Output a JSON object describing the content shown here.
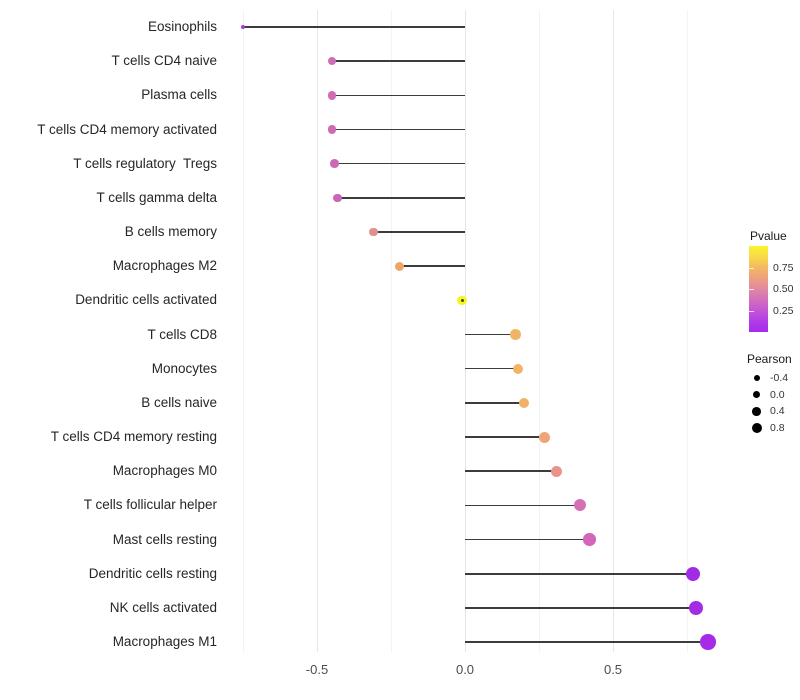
{
  "chart_data": {
    "type": "scatter",
    "variant": "lollipop",
    "title": "",
    "xlabel": "",
    "ylabel": "",
    "grid": true,
    "x_axis": {
      "range": [
        -0.83,
        0.92
      ],
      "ticks": [
        {
          "value": -0.5,
          "label": "-0.5"
        },
        {
          "value": 0.0,
          "label": "0.0"
        },
        {
          "value": 0.5,
          "label": "0.5"
        }
      ],
      "minor_ticks": [
        -0.75,
        -0.25,
        0.25,
        0.75
      ]
    },
    "style": {
      "segment_color": "#3c3c3c",
      "gridline_major_color": "#e6e6e6",
      "gridline_minor_color": "#f3f3f3",
      "background": "#ffffff"
    },
    "points": [
      {
        "label": "Eosinophils",
        "pearson": -0.75,
        "pvalue": 0.12,
        "color": "#AA3BD2",
        "radius_px": 2.2
      },
      {
        "label": "T cells CD4 naive",
        "pearson": -0.45,
        "pvalue": 0.33,
        "color": "#CE6DB5",
        "radius_px": 4.2
      },
      {
        "label": "Plasma cells",
        "pearson": -0.45,
        "pvalue": 0.33,
        "color": "#CE6DB5",
        "radius_px": 4.2
      },
      {
        "label": "T cells CD4 memory activated",
        "pearson": -0.45,
        "pvalue": 0.33,
        "color": "#CD6CB5",
        "radius_px": 4.2
      },
      {
        "label": "T cells regulatory  Tregs",
        "pearson": -0.44,
        "pvalue": 0.34,
        "color": "#CC69B6",
        "radius_px": 4.3
      },
      {
        "label": "T cells gamma delta",
        "pearson": -0.43,
        "pvalue": 0.34,
        "color": "#CB66B7",
        "radius_px": 4.3
      },
      {
        "label": "B cells memory",
        "pearson": -0.31,
        "pvalue": 0.5,
        "color": "#DF908B",
        "radius_px": 4.4
      },
      {
        "label": "Macrophages M2",
        "pearson": -0.22,
        "pvalue": 0.63,
        "color": "#EAA766",
        "radius_px": 4.6
      },
      {
        "label": "Dendritic cells activated",
        "pearson": -0.01,
        "pvalue": 0.97,
        "color": "#F8F620",
        "radius_px": 4.7,
        "center_dot": true
      },
      {
        "label": "T cells CD8",
        "pearson": 0.17,
        "pvalue": 0.72,
        "color": "#F0B467",
        "radius_px": 5.2
      },
      {
        "label": "Monocytes",
        "pearson": 0.18,
        "pvalue": 0.7,
        "color": "#F0B467",
        "radius_px": 5.2
      },
      {
        "label": "B cells naive",
        "pearson": 0.2,
        "pvalue": 0.66,
        "color": "#F0B26A",
        "radius_px": 5.3
      },
      {
        "label": "T cells CD4 memory resting",
        "pearson": 0.27,
        "pvalue": 0.56,
        "color": "#EFA478",
        "radius_px": 5.5
      },
      {
        "label": "Macrophages M0",
        "pearson": 0.31,
        "pvalue": 0.49,
        "color": "#E9938C",
        "radius_px": 5.7
      },
      {
        "label": "T cells follicular helper",
        "pearson": 0.39,
        "pvalue": 0.36,
        "color": "#D56FB4",
        "radius_px": 6.0
      },
      {
        "label": "Mast cells resting",
        "pearson": 0.42,
        "pvalue": 0.31,
        "color": "#D465BA",
        "radius_px": 6.2
      },
      {
        "label": "Dendritic cells resting",
        "pearson": 0.77,
        "pvalue": 0.03,
        "color": "#A12CE5",
        "radius_px": 7.2
      },
      {
        "label": "NK cells activated",
        "pearson": 0.78,
        "pvalue": 0.03,
        "color": "#A12CE5",
        "radius_px": 7.3
      },
      {
        "label": "Macrophages M1",
        "pearson": 0.82,
        "pvalue": 0.02,
        "color": "#A42CE9",
        "radius_px": 7.8
      }
    ],
    "legend_pvalue": {
      "title": "Pvalue",
      "range": [
        0,
        1
      ],
      "ticks": [
        {
          "value": 0.75,
          "label": "0.75"
        },
        {
          "value": 0.5,
          "label": "0.50"
        },
        {
          "value": 0.25,
          "label": "0.25"
        }
      ],
      "gradient_stops": [
        {
          "pos": 0,
          "color": "#FBF32B"
        },
        {
          "pos": 15,
          "color": "#F8D44F"
        },
        {
          "pos": 25,
          "color": "#F2B963"
        },
        {
          "pos": 40,
          "color": "#EC9A84"
        },
        {
          "pos": 50,
          "color": "#E287A2"
        },
        {
          "pos": 62,
          "color": "#D36FBC"
        },
        {
          "pos": 75,
          "color": "#C256D6"
        },
        {
          "pos": 88,
          "color": "#B23BE6"
        },
        {
          "pos": 100,
          "color": "#A52BEF"
        }
      ]
    },
    "legend_pearson": {
      "title": "Pearson",
      "dot_color": "#000000",
      "entries": [
        {
          "label": "-0.4",
          "radius_px": 3.0
        },
        {
          "label": "0.0",
          "radius_px": 3.7
        },
        {
          "label": "0.4",
          "radius_px": 4.3
        },
        {
          "label": "0.8",
          "radius_px": 5.0
        }
      ]
    }
  }
}
